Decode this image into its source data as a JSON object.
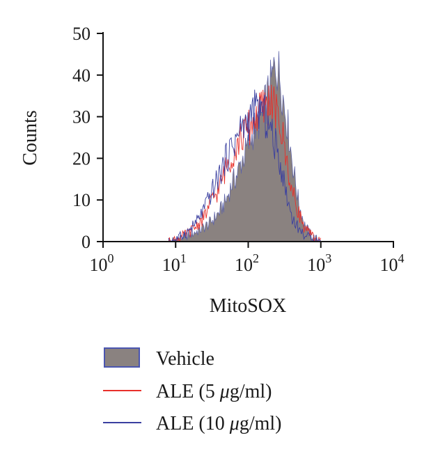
{
  "chart_data": {
    "type": "histogram",
    "xlabel": "MitoSOX",
    "ylabel": "Counts",
    "xscale": "log",
    "xlim": [
      1,
      10000
    ],
    "ylim": [
      0,
      50
    ],
    "grid": false,
    "legend_placement": "bottom",
    "yticks": [
      "0",
      "10",
      "20",
      "30",
      "40",
      "50"
    ],
    "xticks": [
      {
        "base": "10",
        "exp": "0"
      },
      {
        "base": "10",
        "exp": "1"
      },
      {
        "base": "10",
        "exp": "2"
      },
      {
        "base": "10",
        "exp": "3"
      },
      {
        "base": "10",
        "exp": "4"
      }
    ],
    "series": [
      {
        "name": "Vehicle",
        "style": "filled",
        "fill": "#8a8280",
        "stroke": "#5a60a8",
        "points": [
          [
            8,
            0
          ],
          [
            10,
            0.5
          ],
          [
            15,
            1.5
          ],
          [
            20,
            2.5
          ],
          [
            25,
            3.5
          ],
          [
            30,
            4.5
          ],
          [
            40,
            7
          ],
          [
            50,
            10
          ],
          [
            60,
            14
          ],
          [
            70,
            16
          ],
          [
            80,
            19
          ],
          [
            100,
            23
          ],
          [
            120,
            27
          ],
          [
            140,
            29
          ],
          [
            160,
            31
          ],
          [
            180,
            34
          ],
          [
            200,
            37
          ],
          [
            220,
            40
          ],
          [
            240,
            43
          ],
          [
            260,
            41
          ],
          [
            280,
            39
          ],
          [
            300,
            35
          ],
          [
            350,
            28
          ],
          [
            400,
            20
          ],
          [
            450,
            14
          ],
          [
            500,
            9
          ],
          [
            600,
            4
          ],
          [
            700,
            2
          ],
          [
            800,
            1
          ],
          [
            1000,
            0
          ]
        ]
      },
      {
        "name": "ALE (5 μg/ml)",
        "style": "line",
        "color": "#e8302a",
        "points": [
          [
            8,
            0
          ],
          [
            10,
            0.5
          ],
          [
            15,
            2
          ],
          [
            20,
            4
          ],
          [
            25,
            6
          ],
          [
            30,
            9
          ],
          [
            40,
            13
          ],
          [
            50,
            18
          ],
          [
            60,
            21
          ],
          [
            70,
            23
          ],
          [
            80,
            25
          ],
          [
            100,
            27
          ],
          [
            120,
            29
          ],
          [
            140,
            31
          ],
          [
            160,
            32
          ],
          [
            180,
            33
          ],
          [
            200,
            34
          ],
          [
            220,
            33
          ],
          [
            250,
            30
          ],
          [
            300,
            25
          ],
          [
            350,
            18
          ],
          [
            400,
            12
          ],
          [
            500,
            7
          ],
          [
            600,
            3
          ],
          [
            800,
            1
          ],
          [
            1000,
            0
          ]
        ]
      },
      {
        "name": "ALE (10 μg/ml)",
        "style": "line",
        "color": "#3a3fa0",
        "points": [
          [
            8,
            0
          ],
          [
            10,
            0.5
          ],
          [
            15,
            2.5
          ],
          [
            20,
            5
          ],
          [
            25,
            8
          ],
          [
            30,
            11
          ],
          [
            40,
            16
          ],
          [
            50,
            20
          ],
          [
            60,
            23
          ],
          [
            70,
            25
          ],
          [
            80,
            27
          ],
          [
            100,
            29
          ],
          [
            120,
            31
          ],
          [
            140,
            32
          ],
          [
            160,
            31
          ],
          [
            180,
            29
          ],
          [
            200,
            27
          ],
          [
            250,
            22
          ],
          [
            300,
            16
          ],
          [
            350,
            10
          ],
          [
            400,
            6
          ],
          [
            500,
            3
          ],
          [
            600,
            1.5
          ],
          [
            800,
            0.5
          ],
          [
            1000,
            0
          ]
        ]
      }
    ]
  },
  "legend": {
    "items": [
      {
        "label": "Vehicle",
        "swatch": "box"
      },
      {
        "label_prefix": "ALE (5 ",
        "label_mu": "μ",
        "label_suffix": "g/ml)",
        "swatch": "line"
      },
      {
        "label_prefix": "ALE (10 ",
        "label_mu": "μ",
        "label_suffix": "g/ml)",
        "swatch": "line"
      }
    ]
  }
}
